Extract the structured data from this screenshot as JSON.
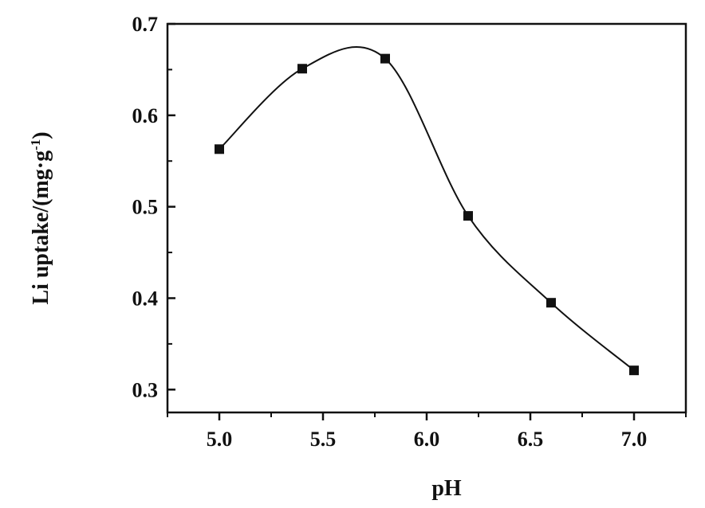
{
  "chart_data": {
    "type": "line",
    "title": "",
    "xlabel": "pH",
    "ylabel_main": "Li uptake/(mg·g",
    "ylabel_sup": "-1",
    "ylabel_close": ")",
    "xlim": [
      4.75,
      7.25
    ],
    "ylim": [
      0.275,
      0.7
    ],
    "x_ticks": [
      5.0,
      5.5,
      6.0,
      6.5,
      7.0
    ],
    "x_tick_labels": [
      "5.0",
      "5.5",
      "6.0",
      "6.5",
      "7.0"
    ],
    "y_ticks": [
      0.3,
      0.4,
      0.5,
      0.6,
      0.7
    ],
    "y_tick_labels": [
      "0.3",
      "0.4",
      "0.5",
      "0.6",
      "0.7"
    ],
    "grid": false,
    "legend": "none",
    "marker": "square",
    "curve": "smooth",
    "series": [
      {
        "x": [
          5.0,
          5.4,
          5.8,
          6.2,
          6.6,
          7.0
        ],
        "y": [
          0.563,
          0.651,
          0.662,
          0.49,
          0.395,
          0.321
        ]
      }
    ],
    "colors": {
      "line": "#111111",
      "marker": "#111111",
      "axis": "#111111"
    }
  }
}
